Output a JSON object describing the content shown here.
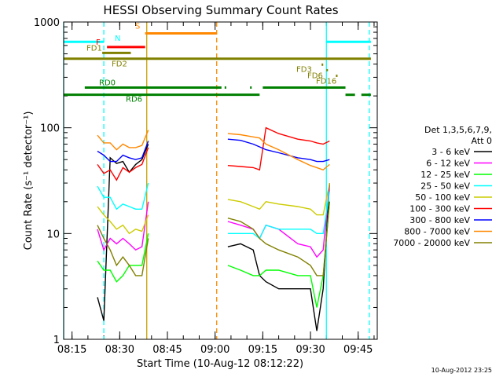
{
  "chart_data": {
    "type": "line",
    "title": "HESSI Observing Summary Count Rates",
    "xlabel": "Start Time (10-Aug-12 08:12:22)",
    "ylabel": "Count Rate (s⁻¹ detector⁻¹)",
    "y_scale": "log",
    "ylim": [
      1,
      1000
    ],
    "xlim": [
      "08:12:22",
      "09:51:00"
    ],
    "x_ticks": [
      "08:15",
      "08:30",
      "08:45",
      "09:00",
      "09:15",
      "09:30",
      "09:45"
    ],
    "y_ticks": [
      "1",
      "10",
      "100",
      "1000"
    ],
    "footer_timestamp": "10-Aug-2012 23:25",
    "legend": {
      "title_lines": [
        "Det 1,3,5,6,7,9,",
        "Att 0"
      ],
      "placement": "right"
    },
    "series": [
      {
        "name": "3 - 6 keV",
        "color": "#000000",
        "values": [
          [
            "08:23",
            2.5
          ],
          [
            "08:25",
            1.5
          ],
          [
            "08:27",
            52
          ],
          [
            "08:29",
            46
          ],
          [
            "08:31",
            48
          ],
          [
            "08:33",
            38
          ],
          [
            "08:35",
            45
          ],
          [
            "08:37",
            50
          ],
          [
            "08:39",
            70
          ],
          [
            "09:04",
            7.5
          ],
          [
            "09:08",
            8
          ],
          [
            "09:12",
            7
          ],
          [
            "09:14",
            4
          ],
          [
            "09:16",
            3.5
          ],
          [
            "09:20",
            3
          ],
          [
            "09:26",
            3
          ],
          [
            "09:30",
            3
          ],
          [
            "09:32",
            1.2
          ],
          [
            "09:34",
            3
          ],
          [
            "09:36",
            30
          ]
        ]
      },
      {
        "name": "6 - 12 keV",
        "color": "#ff00ff",
        "values": [
          [
            "08:23",
            11
          ],
          [
            "08:25",
            7
          ],
          [
            "08:27",
            9
          ],
          [
            "08:29",
            8
          ],
          [
            "08:31",
            9
          ],
          [
            "08:33",
            8
          ],
          [
            "08:35",
            7
          ],
          [
            "08:37",
            7.5
          ],
          [
            "08:39",
            20
          ],
          [
            "09:04",
            13
          ],
          [
            "09:08",
            12
          ],
          [
            "09:12",
            11
          ],
          [
            "09:14",
            9
          ],
          [
            "09:16",
            12
          ],
          [
            "09:20",
            11
          ],
          [
            "09:26",
            8
          ],
          [
            "09:30",
            7.5
          ],
          [
            "09:32",
            6
          ],
          [
            "09:34",
            7
          ],
          [
            "09:36",
            30
          ]
        ]
      },
      {
        "name": "12 - 25 keV",
        "color": "#00ff00",
        "values": [
          [
            "08:23",
            5.5
          ],
          [
            "08:25",
            4.5
          ],
          [
            "08:27",
            4.5
          ],
          [
            "08:29",
            3.5
          ],
          [
            "08:31",
            4
          ],
          [
            "08:33",
            5
          ],
          [
            "08:35",
            5
          ],
          [
            "08:37",
            5
          ],
          [
            "08:39",
            10
          ],
          [
            "09:04",
            5
          ],
          [
            "09:08",
            4.5
          ],
          [
            "09:12",
            4
          ],
          [
            "09:14",
            4
          ],
          [
            "09:16",
            4.5
          ],
          [
            "09:20",
            4.5
          ],
          [
            "09:26",
            4
          ],
          [
            "09:30",
            4
          ],
          [
            "09:32",
            2
          ],
          [
            "09:34",
            4
          ],
          [
            "09:36",
            20
          ]
        ]
      },
      {
        "name": "25 - 50 keV",
        "color": "#00ffff",
        "values": [
          [
            "08:23",
            28
          ],
          [
            "08:25",
            22
          ],
          [
            "08:27",
            22
          ],
          [
            "08:29",
            17
          ],
          [
            "08:31",
            19
          ],
          [
            "08:33",
            18
          ],
          [
            "08:35",
            17
          ],
          [
            "08:37",
            17
          ],
          [
            "08:39",
            30
          ],
          [
            "09:04",
            10
          ],
          [
            "09:08",
            10
          ],
          [
            "09:12",
            10
          ],
          [
            "09:14",
            9
          ],
          [
            "09:16",
            12
          ],
          [
            "09:20",
            11
          ],
          [
            "09:26",
            11
          ],
          [
            "09:30",
            11
          ],
          [
            "09:32",
            10
          ],
          [
            "09:34",
            10
          ],
          [
            "09:36",
            25
          ]
        ]
      },
      {
        "name": "50 - 100 keV",
        "color": "#cccc00",
        "values": [
          [
            "08:23",
            18
          ],
          [
            "08:25",
            15
          ],
          [
            "08:27",
            13
          ],
          [
            "08:29",
            11
          ],
          [
            "08:31",
            12
          ],
          [
            "08:33",
            10
          ],
          [
            "08:35",
            11
          ],
          [
            "08:37",
            10.5
          ],
          [
            "08:39",
            15
          ],
          [
            "09:04",
            21
          ],
          [
            "09:08",
            20
          ],
          [
            "09:12",
            18
          ],
          [
            "09:14",
            17
          ],
          [
            "09:16",
            20
          ],
          [
            "09:20",
            19
          ],
          [
            "09:26",
            18
          ],
          [
            "09:30",
            17
          ],
          [
            "09:32",
            15
          ],
          [
            "09:34",
            15
          ],
          [
            "09:36",
            30
          ]
        ]
      },
      {
        "name": "100 - 300 keV",
        "color": "#ff0000",
        "values": [
          [
            "08:23",
            45
          ],
          [
            "08:25",
            37
          ],
          [
            "08:27",
            40
          ],
          [
            "08:29",
            32
          ],
          [
            "08:31",
            42
          ],
          [
            "08:33",
            38
          ],
          [
            "08:35",
            42
          ],
          [
            "08:37",
            45
          ],
          [
            "08:39",
            65
          ],
          [
            "09:04",
            44
          ],
          [
            "09:08",
            43
          ],
          [
            "09:12",
            42
          ],
          [
            "09:14",
            40
          ],
          [
            "09:16",
            100
          ],
          [
            "09:20",
            88
          ],
          [
            "09:26",
            78
          ],
          [
            "09:30",
            75
          ],
          [
            "09:32",
            72
          ],
          [
            "09:34",
            70
          ],
          [
            "09:36",
            75
          ]
        ]
      },
      {
        "name": "300 - 800 keV",
        "color": "#0000ff",
        "values": [
          [
            "08:23",
            60
          ],
          [
            "08:25",
            55
          ],
          [
            "08:27",
            48
          ],
          [
            "08:29",
            48
          ],
          [
            "08:31",
            55
          ],
          [
            "08:33",
            52
          ],
          [
            "08:35",
            50
          ],
          [
            "08:37",
            52
          ],
          [
            "08:39",
            75
          ],
          [
            "09:04",
            78
          ],
          [
            "09:08",
            76
          ],
          [
            "09:12",
            70
          ],
          [
            "09:14",
            66
          ],
          [
            "09:16",
            62
          ],
          [
            "09:20",
            58
          ],
          [
            "09:26",
            52
          ],
          [
            "09:30",
            50
          ],
          [
            "09:32",
            48
          ],
          [
            "09:34",
            48
          ],
          [
            "09:36",
            50
          ]
        ]
      },
      {
        "name": "800 - 7000 keV",
        "color": "#ff8800",
        "values": [
          [
            "08:23",
            85
          ],
          [
            "08:25",
            72
          ],
          [
            "08:27",
            72
          ],
          [
            "08:29",
            62
          ],
          [
            "08:31",
            70
          ],
          [
            "08:33",
            65
          ],
          [
            "08:35",
            65
          ],
          [
            "08:37",
            68
          ],
          [
            "08:39",
            95
          ],
          [
            "09:04",
            88
          ],
          [
            "09:08",
            86
          ],
          [
            "09:12",
            82
          ],
          [
            "09:14",
            80
          ],
          [
            "09:16",
            70
          ],
          [
            "09:20",
            62
          ],
          [
            "09:26",
            50
          ],
          [
            "09:30",
            44
          ],
          [
            "09:32",
            42
          ],
          [
            "09:34",
            40
          ],
          [
            "09:36",
            45
          ]
        ]
      },
      {
        "name": "7000 - 20000 keV",
        "color": "#808000",
        "values": [
          [
            "08:23",
            12
          ],
          [
            "08:25",
            9
          ],
          [
            "08:27",
            7
          ],
          [
            "08:29",
            5
          ],
          [
            "08:31",
            6
          ],
          [
            "08:33",
            5
          ],
          [
            "08:35",
            4
          ],
          [
            "08:37",
            4
          ],
          [
            "08:39",
            9
          ],
          [
            "09:04",
            14
          ],
          [
            "09:08",
            13
          ],
          [
            "09:12",
            11
          ],
          [
            "09:14",
            9
          ],
          [
            "09:16",
            8
          ],
          [
            "09:20",
            7
          ],
          [
            "09:26",
            6
          ],
          [
            "09:30",
            5
          ],
          [
            "09:32",
            4
          ],
          [
            "09:34",
            4
          ],
          [
            "09:36",
            20
          ]
        ]
      }
    ],
    "flags": [
      {
        "label": "N",
        "color": "#00ffff",
        "level": 650,
        "segments": [
          [
            "08:12:22",
            "08:25:00"
          ],
          [
            "09:35:00",
            "09:49:00"
          ]
        ]
      },
      {
        "label": "S",
        "color": "#ff8800",
        "level": 780,
        "segments": [
          [
            "08:38:00",
            "09:00:30"
          ]
        ]
      },
      {
        "label": "F",
        "color": "#ff0000",
        "level": 580,
        "segments": [
          [
            "08:26:00",
            "08:38:00"
          ]
        ]
      },
      {
        "label": "FD1",
        "color": "#808000",
        "level": 510,
        "segments": [
          [
            "08:24:30",
            "08:33:30"
          ]
        ]
      },
      {
        "label": "FD2",
        "color": "#808000",
        "level": 450,
        "segments": [
          [
            "08:12:22",
            "09:49:00"
          ]
        ]
      },
      {
        "label": "FD3",
        "color": "#808000",
        "level": 395,
        "segments": [
          [
            "09:33:30",
            "09:34:00"
          ]
        ]
      },
      {
        "label": "FD6",
        "color": "#808000",
        "level": 350,
        "segments": [
          [
            "09:35:00",
            "09:35:30"
          ]
        ]
      },
      {
        "label": "FD16",
        "color": "#808000",
        "level": 310,
        "segments": [
          [
            "09:38:00",
            "09:38:30"
          ]
        ]
      },
      {
        "label": "RD0",
        "color": "#008000",
        "level": 240,
        "segments": [
          [
            "08:19:00",
            "09:02:00"
          ],
          [
            "09:03:00",
            "09:03:30"
          ],
          [
            "09:11:00",
            "09:11:30"
          ],
          [
            "09:15:00",
            "09:41:00"
          ]
        ]
      },
      {
        "label": "RD6",
        "color": "#008000",
        "level": 205,
        "segments": [
          [
            "08:12:22",
            "09:14:00"
          ],
          [
            "09:41:00",
            "09:44:00"
          ],
          [
            "09:46:00",
            "09:49:00"
          ]
        ]
      }
    ],
    "vertical_markers": [
      {
        "time": "08:12:22",
        "color": "#00ffff",
        "style": "solid"
      },
      {
        "time": "08:25:00",
        "color": "#00ffff",
        "style": "dashed"
      },
      {
        "time": "08:38:30",
        "color": "#c8a000",
        "style": "solid"
      },
      {
        "time": "09:00:30",
        "color": "#ff8800",
        "style": "dashed"
      },
      {
        "time": "09:35:00",
        "color": "#00ffff",
        "style": "solid"
      },
      {
        "time": "09:48:30",
        "color": "#00ffff",
        "style": "dashed"
      }
    ]
  }
}
